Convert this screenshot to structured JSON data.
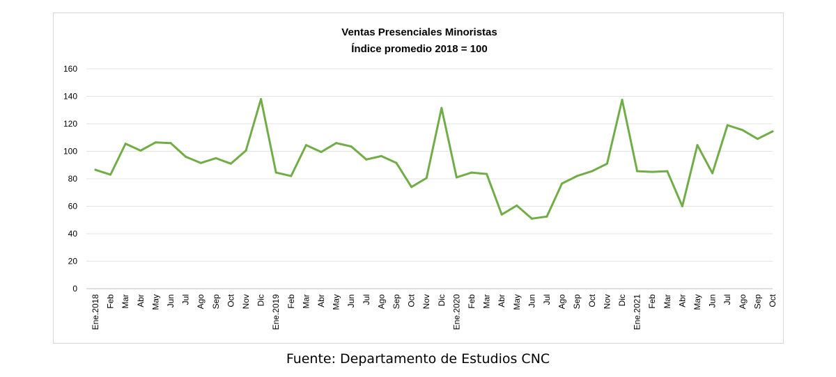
{
  "chart_data": {
    "type": "line",
    "title": "Ventas Presenciales Minoristas",
    "subtitle": "Índice promedio 2018 = 100",
    "xlabel": "",
    "ylabel": "",
    "ylim": [
      0,
      160
    ],
    "yticks": [
      0,
      20,
      40,
      60,
      80,
      100,
      120,
      140,
      160
    ],
    "grid": true,
    "line_color": "#70ad47",
    "categories": [
      "Ene.2018",
      "Feb",
      "Mar",
      "Abr",
      "May",
      "Jun",
      "Jul",
      "Ago",
      "Sep",
      "Oct",
      "Nov",
      "Dic",
      "Ene.2019",
      "Feb",
      "Mar",
      "Abr",
      "May",
      "Jun",
      "Jul",
      "Ago",
      "Sep",
      "Oct",
      "Nov",
      "Dic",
      "Ene.2020",
      "Feb",
      "Mar",
      "Abr",
      "May",
      "Jun",
      "Jul",
      "Ago",
      "Sep",
      "Oct",
      "Nov",
      "Dic",
      "Ene.2021",
      "Feb",
      "Mar",
      "Abr",
      "May",
      "Jun",
      "Jul",
      "Ago",
      "Sep",
      "Oct"
    ],
    "values": [
      86.5,
      83.0,
      105.5,
      100.5,
      106.5,
      106.0,
      96.0,
      91.5,
      95.0,
      91.0,
      100.5,
      138.0,
      84.5,
      82.0,
      104.5,
      99.5,
      106.0,
      103.5,
      94.0,
      96.5,
      91.5,
      74.0,
      80.5,
      131.5,
      81.0,
      84.5,
      83.5,
      54.0,
      60.5,
      51.0,
      52.5,
      76.5,
      82.0,
      85.5,
      91.0,
      137.5,
      85.5,
      85.0,
      85.5,
      60.0,
      104.5,
      84.0,
      119.0,
      115.5,
      109.0,
      114.5
    ]
  },
  "source_note": "Fuente: Departamento de Estudios CNC"
}
